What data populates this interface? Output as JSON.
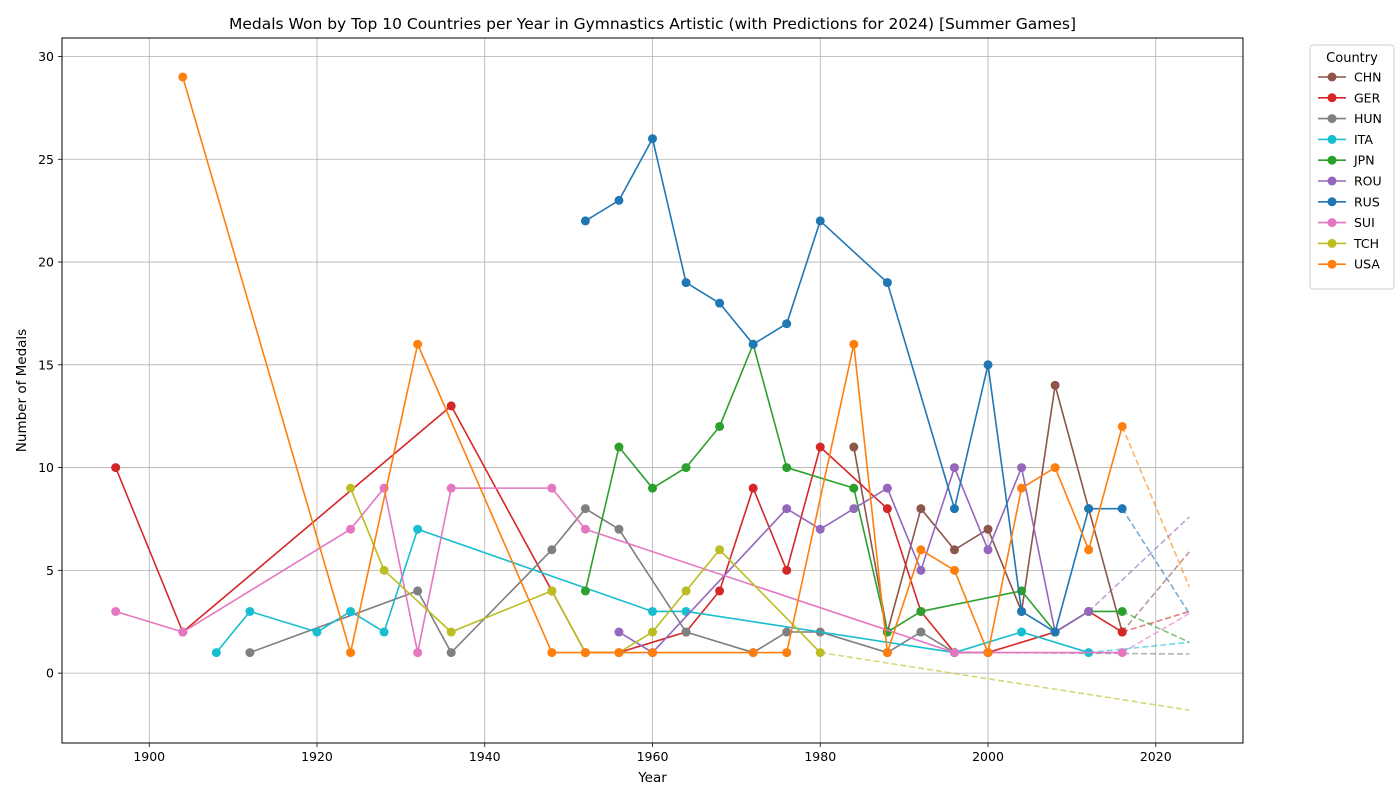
{
  "chart_data": {
    "type": "line",
    "title": "Medals Won by Top 10 Countries per Year in Gymnastics Artistic (with Predictions for 2024) [Summer Games]",
    "xlabel": "Year",
    "ylabel": "Number of Medals",
    "xlim": [
      1889.6,
      2030.4
    ],
    "ylim": [
      -3.4,
      30.9
    ],
    "xticks": [
      1900,
      1920,
      1940,
      1960,
      1980,
      2000,
      2020
    ],
    "yticks": [
      0,
      5,
      10,
      15,
      20,
      25,
      30
    ],
    "grid": true,
    "legend": {
      "title": "Country",
      "placement": "outside-top-right"
    },
    "prediction_year": 2024,
    "series": [
      {
        "name": "CHN",
        "color": "#8c564b",
        "points": [
          [
            1984,
            11
          ],
          [
            1988,
            2
          ],
          [
            1992,
            8
          ],
          [
            1996,
            6
          ],
          [
            2000,
            7
          ],
          [
            2004,
            3
          ],
          [
            2008,
            14
          ],
          [
            2012,
            8
          ],
          [
            2016,
            2
          ]
        ],
        "forecast": [
          [
            2016,
            2
          ],
          [
            2024,
            5.9
          ]
        ]
      },
      {
        "name": "GER",
        "color": "#d62728",
        "points": [
          [
            1896,
            10
          ],
          [
            1904,
            2
          ],
          [
            1936,
            13
          ],
          [
            1948,
            4
          ],
          [
            1952,
            1
          ],
          [
            1956,
            1
          ],
          [
            1964,
            2
          ],
          [
            1968,
            4
          ],
          [
            1972,
            9
          ],
          [
            1976,
            5
          ],
          [
            1980,
            11
          ],
          [
            1988,
            8
          ],
          [
            1992,
            3
          ],
          [
            1996,
            1
          ],
          [
            2000,
            1
          ],
          [
            2008,
            2
          ],
          [
            2012,
            3
          ],
          [
            2016,
            2
          ]
        ],
        "forecast": [
          [
            2016,
            2
          ],
          [
            2024,
            3.0
          ]
        ]
      },
      {
        "name": "HUN",
        "color": "#7f7f7f",
        "points": [
          [
            1912,
            1
          ],
          [
            1932,
            4
          ],
          [
            1936,
            1
          ],
          [
            1948,
            6
          ],
          [
            1952,
            8
          ],
          [
            1956,
            7
          ],
          [
            1964,
            2
          ],
          [
            1972,
            1
          ],
          [
            1976,
            2
          ],
          [
            1980,
            2
          ],
          [
            1988,
            1
          ],
          [
            1992,
            2
          ],
          [
            1996,
            1
          ],
          [
            2000,
            1
          ]
        ],
        "forecast": [
          [
            2000,
            1
          ],
          [
            2024,
            0.93
          ]
        ]
      },
      {
        "name": "ITA",
        "color": "#17becf",
        "points": [
          [
            1908,
            1
          ],
          [
            1912,
            3
          ],
          [
            1920,
            2
          ],
          [
            1924,
            3
          ],
          [
            1928,
            2
          ],
          [
            1932,
            7
          ],
          [
            1960,
            3
          ],
          [
            1964,
            3
          ],
          [
            1996,
            1
          ],
          [
            2004,
            2
          ],
          [
            2012,
            1
          ]
        ],
        "forecast": [
          [
            2012,
            1
          ],
          [
            2024,
            1.5
          ]
        ]
      },
      {
        "name": "JPN",
        "color": "#2ca02c",
        "points": [
          [
            1952,
            4
          ],
          [
            1956,
            11
          ],
          [
            1960,
            9
          ],
          [
            1964,
            10
          ],
          [
            1968,
            12
          ],
          [
            1972,
            16
          ],
          [
            1976,
            10
          ],
          [
            1984,
            9
          ],
          [
            1988,
            2
          ],
          [
            1992,
            3
          ],
          [
            2004,
            4
          ],
          [
            2008,
            2
          ],
          [
            2012,
            3
          ],
          [
            2016,
            3
          ]
        ],
        "forecast": [
          [
            2016,
            3
          ],
          [
            2024,
            1.5
          ]
        ]
      },
      {
        "name": "ROU",
        "color": "#9467bd",
        "points": [
          [
            1956,
            2
          ],
          [
            1960,
            1
          ],
          [
            1976,
            8
          ],
          [
            1980,
            7
          ],
          [
            1984,
            8
          ],
          [
            1988,
            9
          ],
          [
            1992,
            5
          ],
          [
            1996,
            10
          ],
          [
            2000,
            6
          ],
          [
            2004,
            10
          ],
          [
            2008,
            2
          ],
          [
            2012,
            3
          ]
        ],
        "forecast": [
          [
            2012,
            3
          ],
          [
            2024,
            7.6
          ]
        ]
      },
      {
        "name": "RUS",
        "color": "#1f77b4",
        "points": [
          [
            1952,
            22
          ],
          [
            1956,
            23
          ],
          [
            1960,
            26
          ],
          [
            1964,
            19
          ],
          [
            1968,
            18
          ],
          [
            1972,
            16
          ],
          [
            1976,
            17
          ],
          [
            1980,
            22
          ],
          [
            1988,
            19
          ],
          [
            1996,
            8
          ],
          [
            2000,
            15
          ],
          [
            2004,
            3
          ],
          [
            2008,
            2
          ],
          [
            2012,
            8
          ],
          [
            2016,
            8
          ]
        ],
        "forecast": [
          [
            2016,
            8
          ],
          [
            2024,
            2.9
          ]
        ]
      },
      {
        "name": "SUI",
        "color": "#e377c2",
        "points": [
          [
            1896,
            3
          ],
          [
            1904,
            2
          ],
          [
            1924,
            7
          ],
          [
            1928,
            9
          ],
          [
            1932,
            1
          ],
          [
            1936,
            9
          ],
          [
            1948,
            9
          ],
          [
            1952,
            7
          ],
          [
            1996,
            1
          ],
          [
            2016,
            1
          ]
        ],
        "forecast": [
          [
            2016,
            1
          ],
          [
            2024,
            2.9
          ]
        ]
      },
      {
        "name": "TCH",
        "color": "#bcbd22",
        "points": [
          [
            1924,
            9
          ],
          [
            1928,
            5
          ],
          [
            1936,
            2
          ],
          [
            1948,
            4
          ],
          [
            1952,
            1
          ],
          [
            1956,
            1
          ],
          [
            1960,
            2
          ],
          [
            1964,
            4
          ],
          [
            1968,
            6
          ],
          [
            1980,
            1
          ]
        ],
        "forecast": [
          [
            1980,
            1
          ],
          [
            2024,
            -1.8
          ]
        ]
      },
      {
        "name": "USA",
        "color": "#ff7f0e",
        "points": [
          [
            1904,
            29
          ],
          [
            1924,
            1
          ],
          [
            1932,
            16
          ],
          [
            1948,
            1
          ],
          [
            1952,
            1
          ],
          [
            1956,
            1
          ],
          [
            1960,
            1
          ],
          [
            1972,
            1
          ],
          [
            1976,
            1
          ],
          [
            1984,
            16
          ],
          [
            1988,
            1
          ],
          [
            1992,
            6
          ],
          [
            1996,
            5
          ],
          [
            2000,
            1
          ],
          [
            2004,
            9
          ],
          [
            2008,
            10
          ],
          [
            2012,
            6
          ],
          [
            2016,
            12
          ]
        ],
        "forecast": [
          [
            2016,
            12
          ],
          [
            2024,
            4.2
          ]
        ]
      }
    ]
  }
}
